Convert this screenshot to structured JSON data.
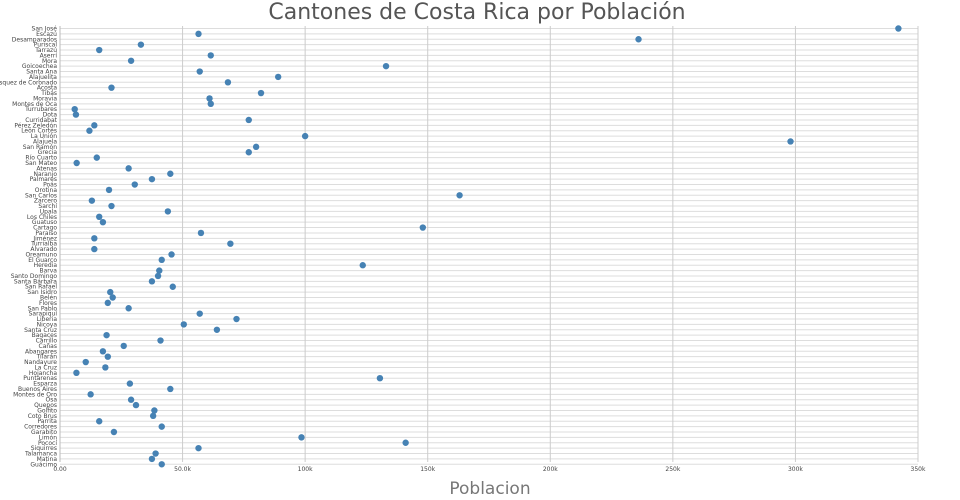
{
  "chart_data": {
    "type": "scatter",
    "title": "Cantones de Costa Rica por Población",
    "xlabel": "Poblacion",
    "ylabel": "",
    "xlim": [
      0,
      350000
    ],
    "xticks": [
      0,
      50000,
      100000,
      150000,
      200000,
      250000,
      300000,
      350000
    ],
    "xtick_labels": [
      "0.00",
      "50.0k",
      "100k",
      "150k",
      "200k",
      "250k",
      "300k",
      "350k"
    ],
    "grid": true,
    "marker_color": "#4682b4",
    "categories": [
      "San José",
      "Escazú",
      "Desamparados",
      "Puriscal",
      "Tarrazú",
      "Aserrí",
      "Mora",
      "Goicoechea",
      "Santa Ana",
      "Alajuelita",
      "Vásquez de Coronado",
      "Acosta",
      "Tibás",
      "Moravia",
      "Montes de Oca",
      "Turrubares",
      "Dota",
      "Curridabat",
      "Pérez Zeledón",
      "León Cortés",
      "La Unión",
      "Alajuela",
      "San Ramón",
      "Grecia",
      "Río Cuarto",
      "San Mateo",
      "Atenas",
      "Naranjo",
      "Palmares",
      "Poás",
      "Orotina",
      "San Carlos",
      "Zarcero",
      "Sarchí",
      "Upala",
      "Los Chiles",
      "Guatuso",
      "Cartago",
      "Paraíso",
      "Jiménez",
      "Turrialba",
      "Alvarado",
      "Oreamuno",
      "El Guarco",
      "Heredia",
      "Barva",
      "Santo Domingo",
      "Santa Bárbara",
      "San Rafael",
      "San Isidro",
      "Belén",
      "Flores",
      "San Pablo",
      "Sarapiquí",
      "Liberia",
      "Nicoya",
      "Santa Cruz",
      "Bagaces",
      "Carrillo",
      "Cañas",
      "Abangares",
      "Tilarán",
      "Nandayure",
      "La Cruz",
      "Hojancha",
      "Puntarenas",
      "Esparza",
      "Buenos Aires",
      "Montes de Oro",
      "Osa",
      "Quepos",
      "Golfito",
      "Coto Brus",
      "Parrita",
      "Corredores",
      "Garabito",
      "Limón",
      "Pococí",
      "Siquirres",
      "Talamanca",
      "Matina",
      "Guácimo"
    ],
    "values": [
      342000,
      56500,
      236000,
      33000,
      16000,
      61500,
      29000,
      133000,
      57000,
      89000,
      68500,
      21000,
      82000,
      61000,
      61500,
      6000,
      6500,
      77000,
      14000,
      12000,
      100000,
      298000,
      80000,
      77000,
      15000,
      6800,
      28000,
      45000,
      37500,
      30500,
      20000,
      163000,
      13000,
      21000,
      44000,
      16000,
      17500,
      148000,
      57500,
      14000,
      69500,
      14000,
      45500,
      41500,
      123500,
      40500,
      40000,
      37500,
      46000,
      20500,
      21500,
      19500,
      28000,
      57000,
      72000,
      50500,
      64000,
      19000,
      41000,
      26000,
      17500,
      19500,
      10500,
      18500,
      6700,
      130500,
      28500,
      45000,
      12500,
      29000,
      31000,
      38500,
      38000,
      16000,
      41500,
      22000,
      98500,
      141000,
      56500,
      39000,
      37500,
      41500
    ]
  }
}
